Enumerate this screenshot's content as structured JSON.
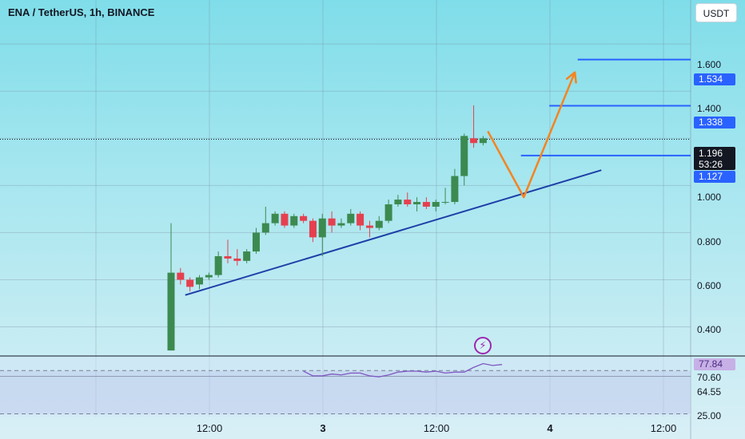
{
  "header": {
    "title": "ENA / TetherUS, 1h, BINANCE",
    "currency_button": "USDT"
  },
  "colors": {
    "up": "#3c8a50",
    "down": "#e5404f",
    "trendline": "#1e3fa8",
    "level_lines": "#2962ff",
    "projection": "#f5841f",
    "rsi": "#7e57c2"
  },
  "icons": {
    "alert": "lightning-bolt-icon"
  },
  "chart_data": {
    "type": "candlestick",
    "price_axis": {
      "range": [
        0.28,
        1.78
      ],
      "tick_labels": [
        "1.600",
        "1.400",
        "1.000",
        "0.800",
        "0.600",
        "0.400"
      ],
      "tick_values": [
        1.6,
        1.4,
        1.0,
        0.8,
        0.6,
        0.4
      ]
    },
    "time_axis": {
      "tick_labels": [
        "12:00",
        "3",
        "12:00",
        "4",
        "12:00"
      ],
      "tick_bars": [
        5,
        17,
        29,
        41,
        53
      ]
    },
    "candles": [
      {
        "o": 0.3,
        "h": 0.84,
        "l": 0.3,
        "c": 0.63
      },
      {
        "o": 0.63,
        "h": 0.65,
        "l": 0.58,
        "c": 0.6
      },
      {
        "o": 0.6,
        "h": 0.61,
        "l": 0.55,
        "c": 0.57
      },
      {
        "o": 0.58,
        "h": 0.62,
        "l": 0.56,
        "c": 0.61
      },
      {
        "o": 0.61,
        "h": 0.63,
        "l": 0.6,
        "c": 0.62
      },
      {
        "o": 0.62,
        "h": 0.72,
        "l": 0.61,
        "c": 0.7
      },
      {
        "o": 0.7,
        "h": 0.77,
        "l": 0.67,
        "c": 0.69
      },
      {
        "o": 0.69,
        "h": 0.73,
        "l": 0.66,
        "c": 0.68
      },
      {
        "o": 0.68,
        "h": 0.73,
        "l": 0.67,
        "c": 0.72
      },
      {
        "o": 0.72,
        "h": 0.82,
        "l": 0.71,
        "c": 0.8
      },
      {
        "o": 0.8,
        "h": 0.91,
        "l": 0.79,
        "c": 0.84
      },
      {
        "o": 0.84,
        "h": 0.89,
        "l": 0.83,
        "c": 0.88
      },
      {
        "o": 0.88,
        "h": 0.89,
        "l": 0.82,
        "c": 0.83
      },
      {
        "o": 0.83,
        "h": 0.88,
        "l": 0.82,
        "c": 0.87
      },
      {
        "o": 0.87,
        "h": 0.88,
        "l": 0.84,
        "c": 0.85
      },
      {
        "o": 0.85,
        "h": 0.86,
        "l": 0.76,
        "c": 0.78
      },
      {
        "o": 0.78,
        "h": 0.88,
        "l": 0.7,
        "c": 0.86
      },
      {
        "o": 0.86,
        "h": 0.89,
        "l": 0.8,
        "c": 0.83
      },
      {
        "o": 0.83,
        "h": 0.86,
        "l": 0.82,
        "c": 0.84
      },
      {
        "o": 0.84,
        "h": 0.9,
        "l": 0.83,
        "c": 0.88
      },
      {
        "o": 0.88,
        "h": 0.89,
        "l": 0.81,
        "c": 0.83
      },
      {
        "o": 0.83,
        "h": 0.85,
        "l": 0.78,
        "c": 0.82
      },
      {
        "o": 0.82,
        "h": 0.87,
        "l": 0.81,
        "c": 0.85
      },
      {
        "o": 0.85,
        "h": 0.94,
        "l": 0.84,
        "c": 0.92
      },
      {
        "o": 0.92,
        "h": 0.96,
        "l": 0.91,
        "c": 0.94
      },
      {
        "o": 0.94,
        "h": 0.97,
        "l": 0.91,
        "c": 0.92
      },
      {
        "o": 0.92,
        "h": 0.95,
        "l": 0.89,
        "c": 0.93
      },
      {
        "o": 0.93,
        "h": 0.95,
        "l": 0.9,
        "c": 0.91
      },
      {
        "o": 0.91,
        "h": 0.94,
        "l": 0.89,
        "c": 0.93
      },
      {
        "o": 0.93,
        "h": 0.99,
        "l": 0.92,
        "c": 0.93
      },
      {
        "o": 0.93,
        "h": 1.07,
        "l": 0.92,
        "c": 1.04
      },
      {
        "o": 1.04,
        "h": 1.22,
        "l": 1.0,
        "c": 1.21
      },
      {
        "o": 1.2,
        "h": 1.34,
        "l": 1.16,
        "c": 1.18
      },
      {
        "o": 1.18,
        "h": 1.21,
        "l": 1.17,
        "c": 1.2
      }
    ],
    "current_price": {
      "value": 1.196,
      "label": "1.196",
      "countdown": "53:26"
    },
    "levels": [
      {
        "value": 1.534,
        "label": "1.534",
        "from_bar": 43
      },
      {
        "value": 1.338,
        "label": "1.338",
        "from_bar": 40
      },
      {
        "value": 1.127,
        "label": "1.127",
        "from_bar": 37
      }
    ],
    "trendline": {
      "from": {
        "bar": 1.5,
        "price": 0.535
      },
      "to": {
        "bar": 45.5,
        "price": 1.065
      }
    },
    "projection": [
      {
        "bar": 33.5,
        "price": 1.23
      },
      {
        "bar": 37.3,
        "price": 0.95
      },
      {
        "bar": 42.7,
        "price": 1.48
      }
    ],
    "rsi": {
      "range": [
        22,
        86
      ],
      "tick_values": [
        70.6,
        64.55,
        25.0
      ],
      "tick_labels": [
        "70.60",
        "64.55",
        "25.00"
      ],
      "current_label": "77.84",
      "current": 77.84,
      "start_bar": 14,
      "values": [
        70,
        65,
        65,
        67,
        66,
        68,
        68,
        65,
        64,
        66,
        69,
        70,
        70,
        69,
        70,
        68,
        69,
        69,
        74,
        78,
        76,
        77
      ]
    }
  }
}
